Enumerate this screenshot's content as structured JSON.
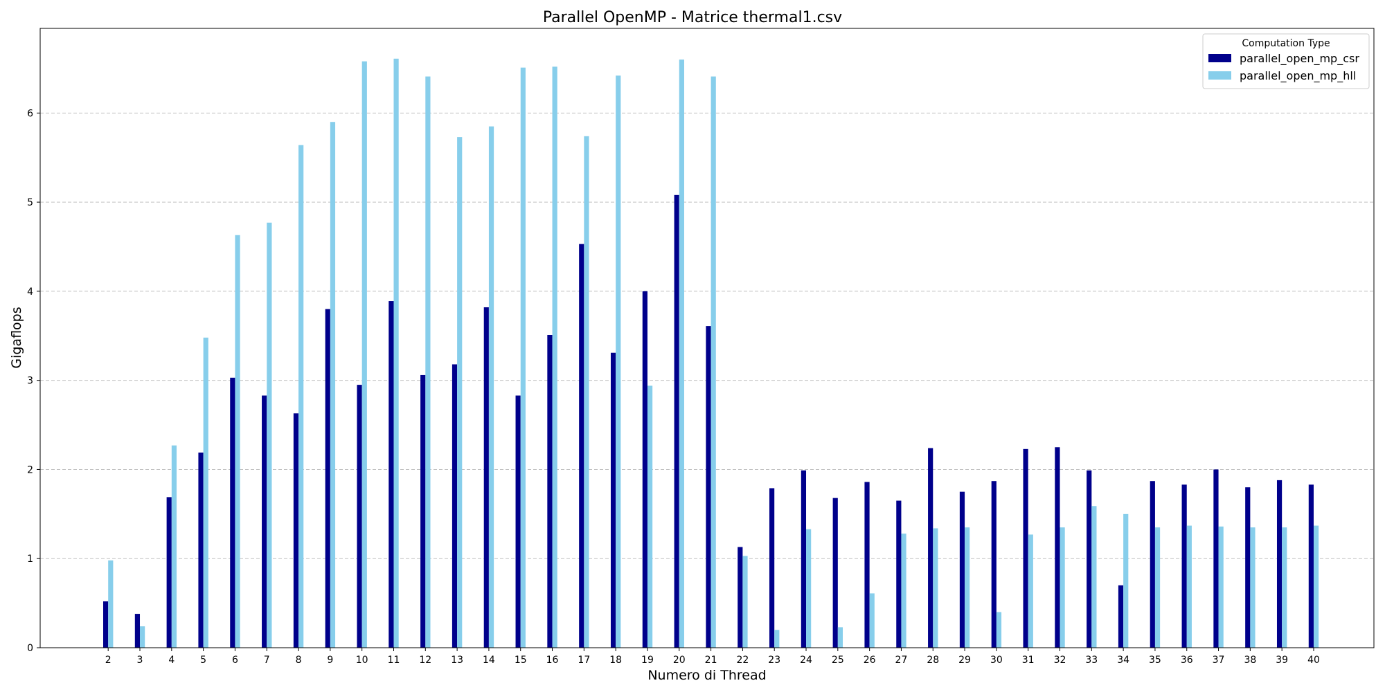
{
  "chart_data": {
    "type": "bar",
    "title": "Parallel OpenMP - Matrice thermal1.csv",
    "xlabel": "Numero di Thread",
    "ylabel": "Gigaflops",
    "ylim": [
      0,
      6.95
    ],
    "yticks": [
      "0",
      "1",
      "2",
      "3",
      "4",
      "5",
      "6"
    ],
    "grid": "horizontal dashed",
    "legend": {
      "title": "Computation Type",
      "placement": "top-right"
    },
    "categories": [
      "2",
      "3",
      "4",
      "5",
      "6",
      "7",
      "8",
      "9",
      "10",
      "11",
      "12",
      "13",
      "14",
      "15",
      "16",
      "17",
      "18",
      "19",
      "20",
      "21",
      "22",
      "23",
      "24",
      "25",
      "26",
      "27",
      "28",
      "29",
      "30",
      "31",
      "32",
      "33",
      "34",
      "35",
      "36",
      "37",
      "38",
      "39",
      "40"
    ],
    "series": [
      {
        "name": "parallel_open_mp_csr",
        "color": "#00008b",
        "values": [
          0.52,
          0.38,
          1.69,
          2.19,
          3.03,
          2.83,
          2.63,
          3.8,
          2.95,
          3.89,
          3.06,
          3.18,
          3.82,
          2.83,
          3.51,
          4.53,
          3.31,
          4.0,
          5.08,
          3.61,
          1.13,
          1.79,
          1.99,
          1.68,
          1.86,
          1.65,
          2.24,
          1.75,
          1.87,
          2.23,
          2.25,
          1.99,
          0.7,
          1.87,
          1.83,
          2.0,
          1.8,
          1.88,
          1.83
        ]
      },
      {
        "name": "parallel_open_mp_hll",
        "color": "#87ceeb",
        "values": [
          0.98,
          0.24,
          2.27,
          3.48,
          4.63,
          4.77,
          5.64,
          5.9,
          6.58,
          6.61,
          6.41,
          5.73,
          5.85,
          6.51,
          6.52,
          5.74,
          6.42,
          2.94,
          6.6,
          6.41,
          1.03,
          0.2,
          1.33,
          0.23,
          0.61,
          1.28,
          1.34,
          1.35,
          0.4,
          1.27,
          1.35,
          1.59,
          1.5,
          1.35,
          1.37,
          1.36,
          1.35,
          1.35,
          1.37
        ]
      }
    ]
  }
}
